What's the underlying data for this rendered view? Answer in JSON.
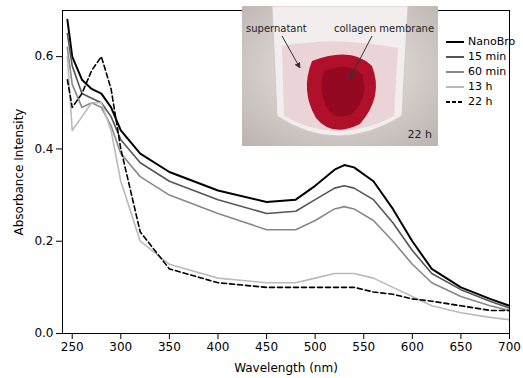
{
  "chart_data": {
    "type": "line",
    "xlabel": "Wavelength (nm)",
    "ylabel": "Absorbance Intensity",
    "x": [
      245,
      250,
      260,
      270,
      280,
      290,
      300,
      320,
      350,
      400,
      450,
      480,
      500,
      520,
      530,
      540,
      560,
      580,
      600,
      620,
      650,
      680,
      700
    ],
    "series": [
      {
        "name": "NanoBro",
        "color": "#000000",
        "line_style": "solid",
        "values": [
          0.68,
          0.6,
          0.55,
          0.53,
          0.52,
          0.49,
          0.44,
          0.39,
          0.35,
          0.31,
          0.285,
          0.29,
          0.32,
          0.355,
          0.365,
          0.36,
          0.33,
          0.27,
          0.2,
          0.14,
          0.1,
          0.075,
          0.06
        ]
      },
      {
        "name": "15 min",
        "color": "#555555",
        "line_style": "solid",
        "values": [
          0.65,
          0.58,
          0.52,
          0.51,
          0.5,
          0.47,
          0.42,
          0.37,
          0.33,
          0.29,
          0.26,
          0.265,
          0.29,
          0.315,
          0.32,
          0.315,
          0.29,
          0.24,
          0.18,
          0.13,
          0.095,
          0.07,
          0.055
        ]
      },
      {
        "name": "60 min",
        "color": "#888888",
        "line_style": "solid",
        "values": [
          0.62,
          0.54,
          0.49,
          0.5,
          0.49,
          0.45,
          0.39,
          0.34,
          0.3,
          0.26,
          0.225,
          0.225,
          0.245,
          0.27,
          0.275,
          0.27,
          0.245,
          0.2,
          0.15,
          0.11,
          0.08,
          0.06,
          0.05
        ]
      },
      {
        "name": "13 h",
        "color": "#bbbbbb",
        "line_style": "solid",
        "values": [
          0.6,
          0.44,
          0.47,
          0.5,
          0.5,
          0.44,
          0.33,
          0.2,
          0.15,
          0.12,
          0.11,
          0.11,
          0.12,
          0.13,
          0.13,
          0.13,
          0.12,
          0.1,
          0.08,
          0.06,
          0.045,
          0.035,
          0.03
        ]
      },
      {
        "name": "22 h",
        "color": "#000000",
        "line_style": "dashed",
        "values": [
          0.55,
          0.49,
          0.52,
          0.57,
          0.6,
          0.53,
          0.4,
          0.22,
          0.14,
          0.11,
          0.1,
          0.1,
          0.1,
          0.1,
          0.1,
          0.1,
          0.09,
          0.085,
          0.075,
          0.07,
          0.06,
          0.05,
          0.05
        ]
      }
    ],
    "xlim": [
      240,
      700
    ],
    "xticks": [
      250,
      300,
      350,
      400,
      450,
      500,
      550,
      600,
      650,
      700
    ],
    "ylim": [
      0,
      0.7
    ],
    "yticks": [
      {
        "value": 0,
        "label": "0.0"
      },
      0.2,
      0.4,
      0.6
    ],
    "legend": "right",
    "annotations": [
      "supernatant",
      "collagen membrane",
      "22 h"
    ]
  }
}
